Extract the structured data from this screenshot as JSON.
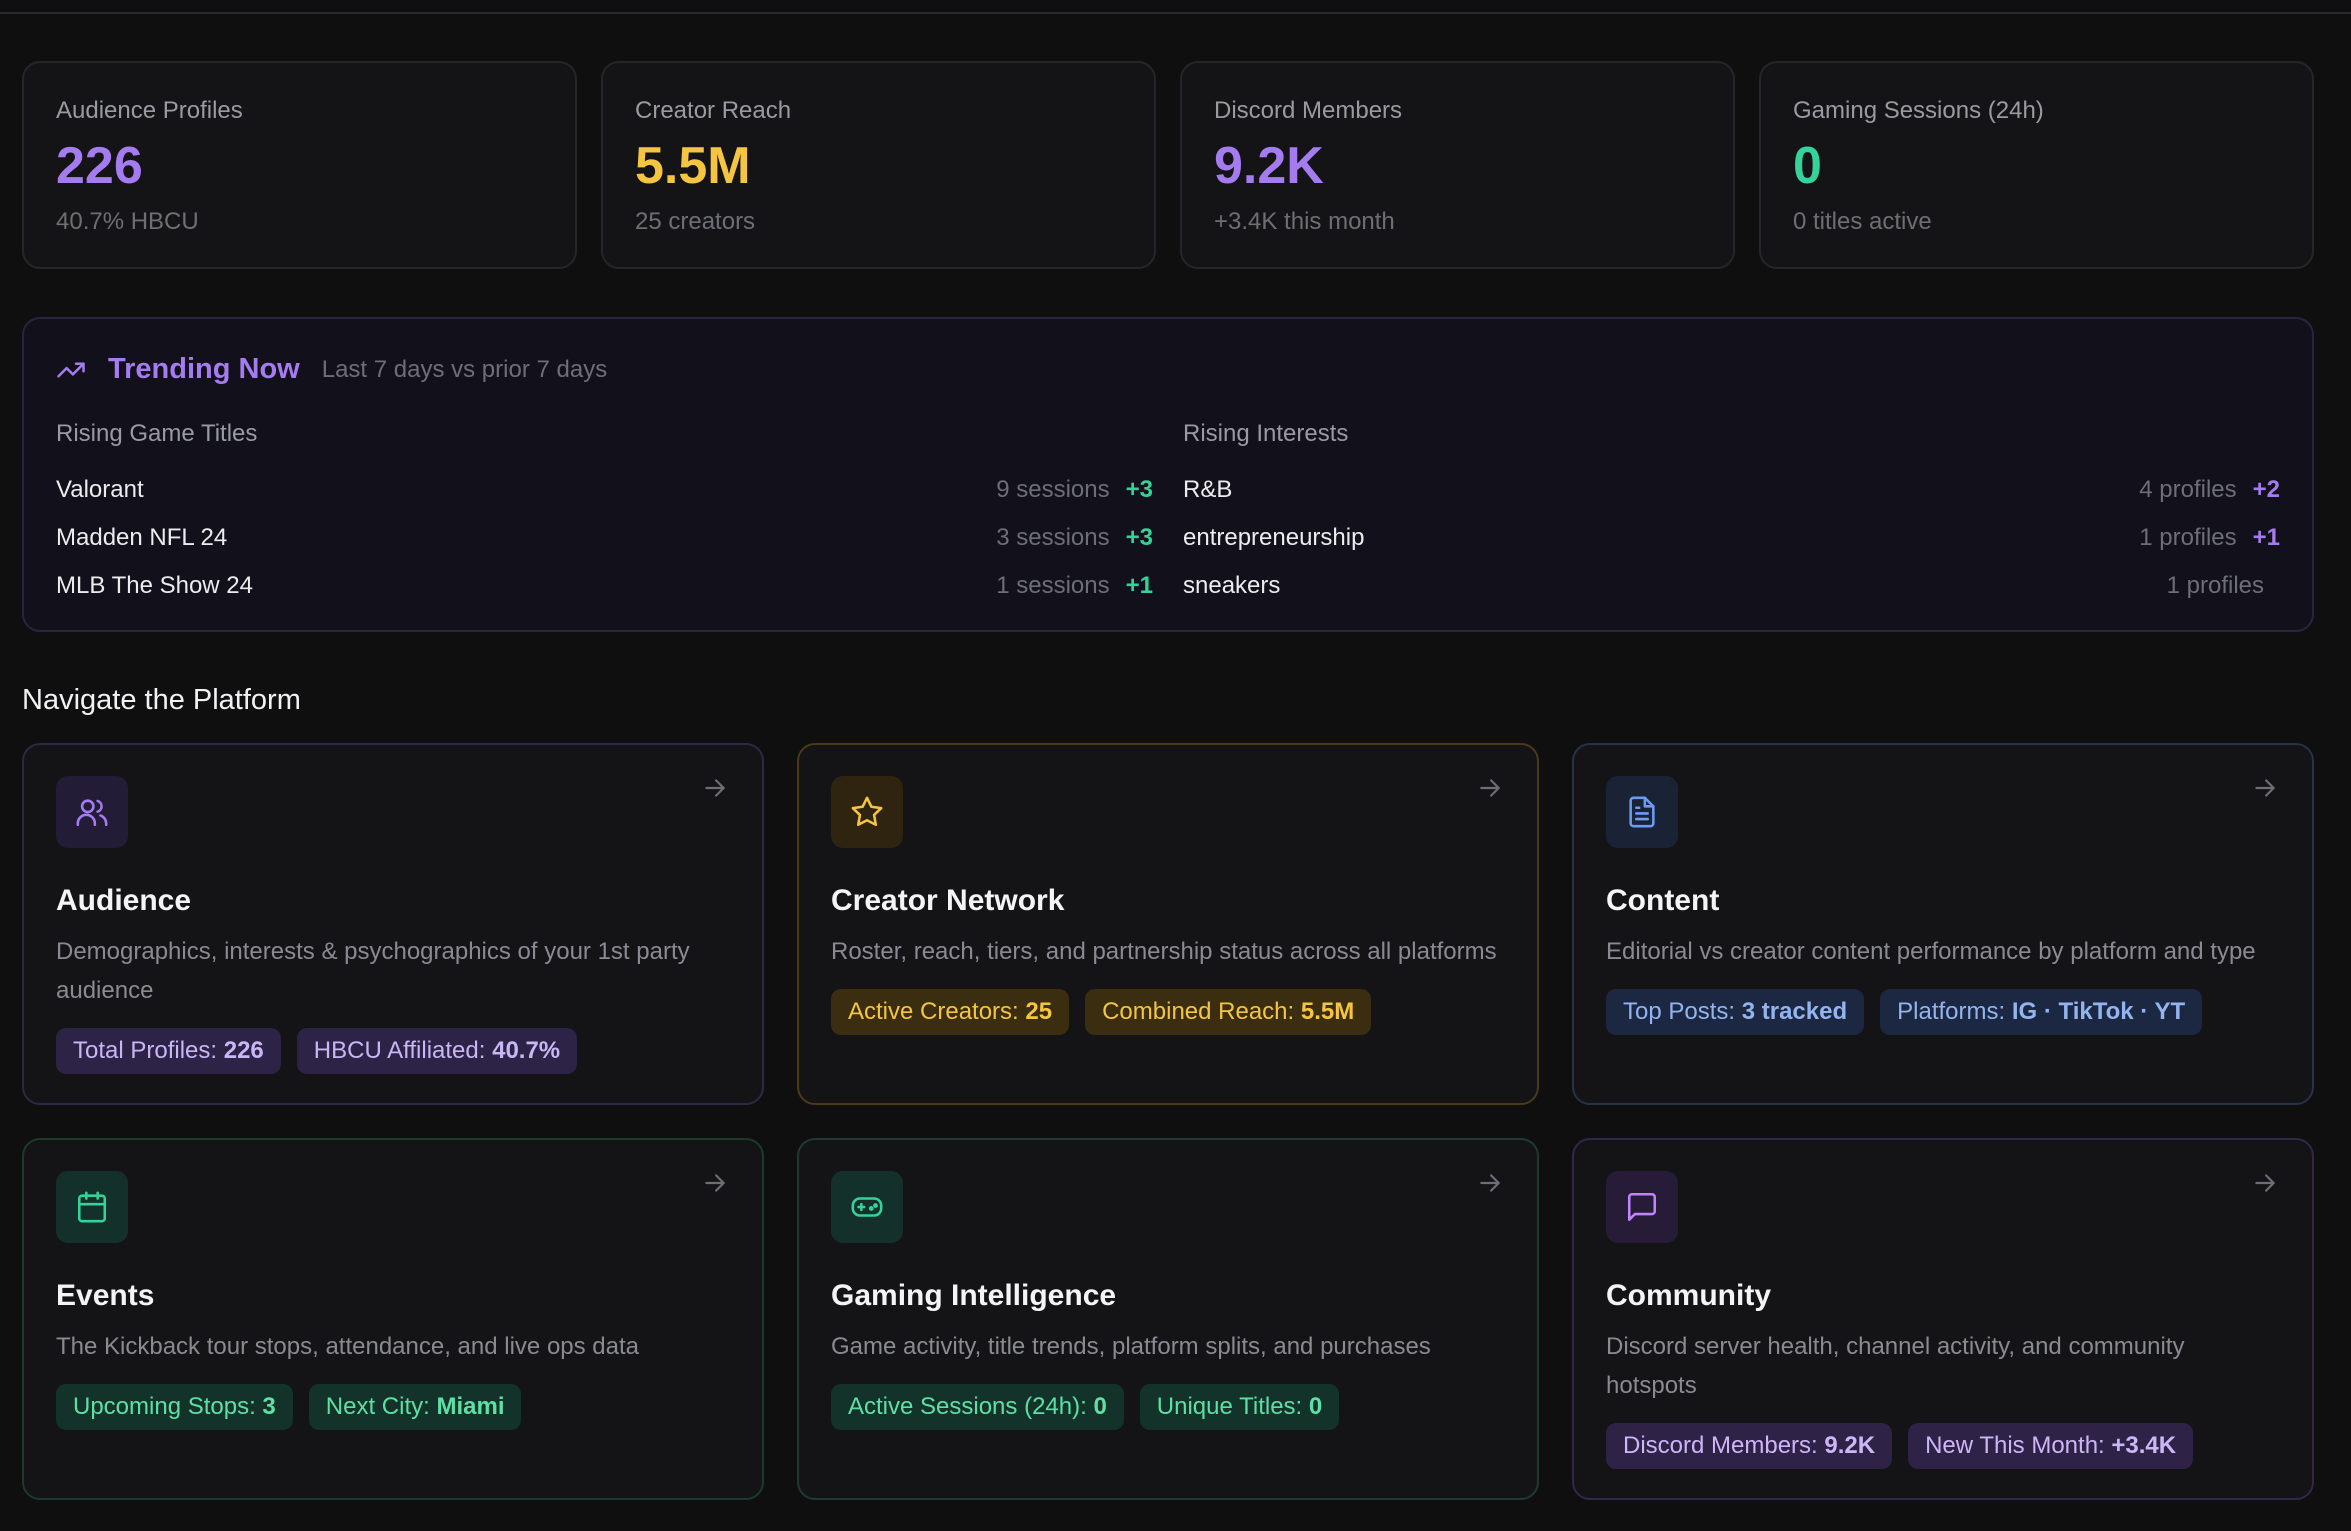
{
  "colors": {
    "purple": "#a57cf0",
    "gold": "#f5c542",
    "green": "#34d399",
    "blue": "#6b9cf0"
  },
  "stats": [
    {
      "label": "Audience Profiles",
      "value": "226",
      "sub": "40.7% HBCU",
      "color": "#a57cf0"
    },
    {
      "label": "Creator Reach",
      "value": "5.5M",
      "sub": "25 creators",
      "color": "#f5c542"
    },
    {
      "label": "Discord Members",
      "value": "9.2K",
      "sub": "+3.4K this month",
      "color": "#a57cf0"
    },
    {
      "label": "Gaming Sessions (24h)",
      "value": "0",
      "sub": "0 titles active",
      "color": "#34d399"
    }
  ],
  "trending": {
    "icon": "trending-up-icon",
    "title": "Trending Now",
    "period": "Last 7 days vs prior 7 days",
    "games": {
      "title": "Rising Game Titles",
      "rows": [
        {
          "name": "Valorant",
          "count": "9 sessions",
          "delta": "+3"
        },
        {
          "name": "Madden NFL 24",
          "count": "3 sessions",
          "delta": "+3"
        },
        {
          "name": "MLB The Show 24",
          "count": "1 sessions",
          "delta": "+1"
        }
      ]
    },
    "interests": {
      "title": "Rising Interests",
      "rows": [
        {
          "name": "R&B",
          "count": "4 profiles",
          "delta": "+2"
        },
        {
          "name": "entrepreneurship",
          "count": "1 profiles",
          "delta": "+1"
        },
        {
          "name": "sneakers",
          "count": "1 profiles",
          "delta": ""
        }
      ]
    }
  },
  "nav": {
    "title": "Navigate the Platform",
    "cards": [
      {
        "title": "Audience",
        "icon": "users-icon",
        "desc": "Demographics, interests & psychographics of your 1st party audience",
        "chips": [
          {
            "label": "Total Profiles: ",
            "value": "226"
          },
          {
            "label": "HBCU Affiliated: ",
            "value": "40.7%"
          }
        ]
      },
      {
        "title": "Creator Network",
        "icon": "star-icon",
        "desc": "Roster, reach, tiers, and partnership status across all platforms",
        "chips": [
          {
            "label": "Active Creators: ",
            "value": "25"
          },
          {
            "label": "Combined Reach: ",
            "value": "5.5M"
          }
        ]
      },
      {
        "title": "Content",
        "icon": "document-icon",
        "desc": "Editorial vs creator content performance by platform and type",
        "chips": [
          {
            "label": "Top Posts: ",
            "value": "3 tracked"
          },
          {
            "label": "Platforms: ",
            "value": "IG · TikTok · YT"
          }
        ]
      },
      {
        "title": "Events",
        "icon": "calendar-icon",
        "desc": "The Kickback tour stops, attendance, and live ops data",
        "chips": [
          {
            "label": "Upcoming Stops: ",
            "value": "3"
          },
          {
            "label": "Next City: ",
            "value": "Miami"
          }
        ]
      },
      {
        "title": "Gaming Intelligence",
        "icon": "gamepad-icon",
        "desc": "Game activity, title trends, platform splits, and purchases",
        "chips": [
          {
            "label": "Active Sessions (24h): ",
            "value": "0"
          },
          {
            "label": "Unique Titles: ",
            "value": "0"
          }
        ]
      },
      {
        "title": "Community",
        "icon": "chat-icon",
        "desc": "Discord server health, channel activity, and community hotspots",
        "chips": [
          {
            "label": "Discord Members: ",
            "value": "9.2K"
          },
          {
            "label": "New This Month: ",
            "value": "+3.4K"
          }
        ]
      }
    ]
  }
}
